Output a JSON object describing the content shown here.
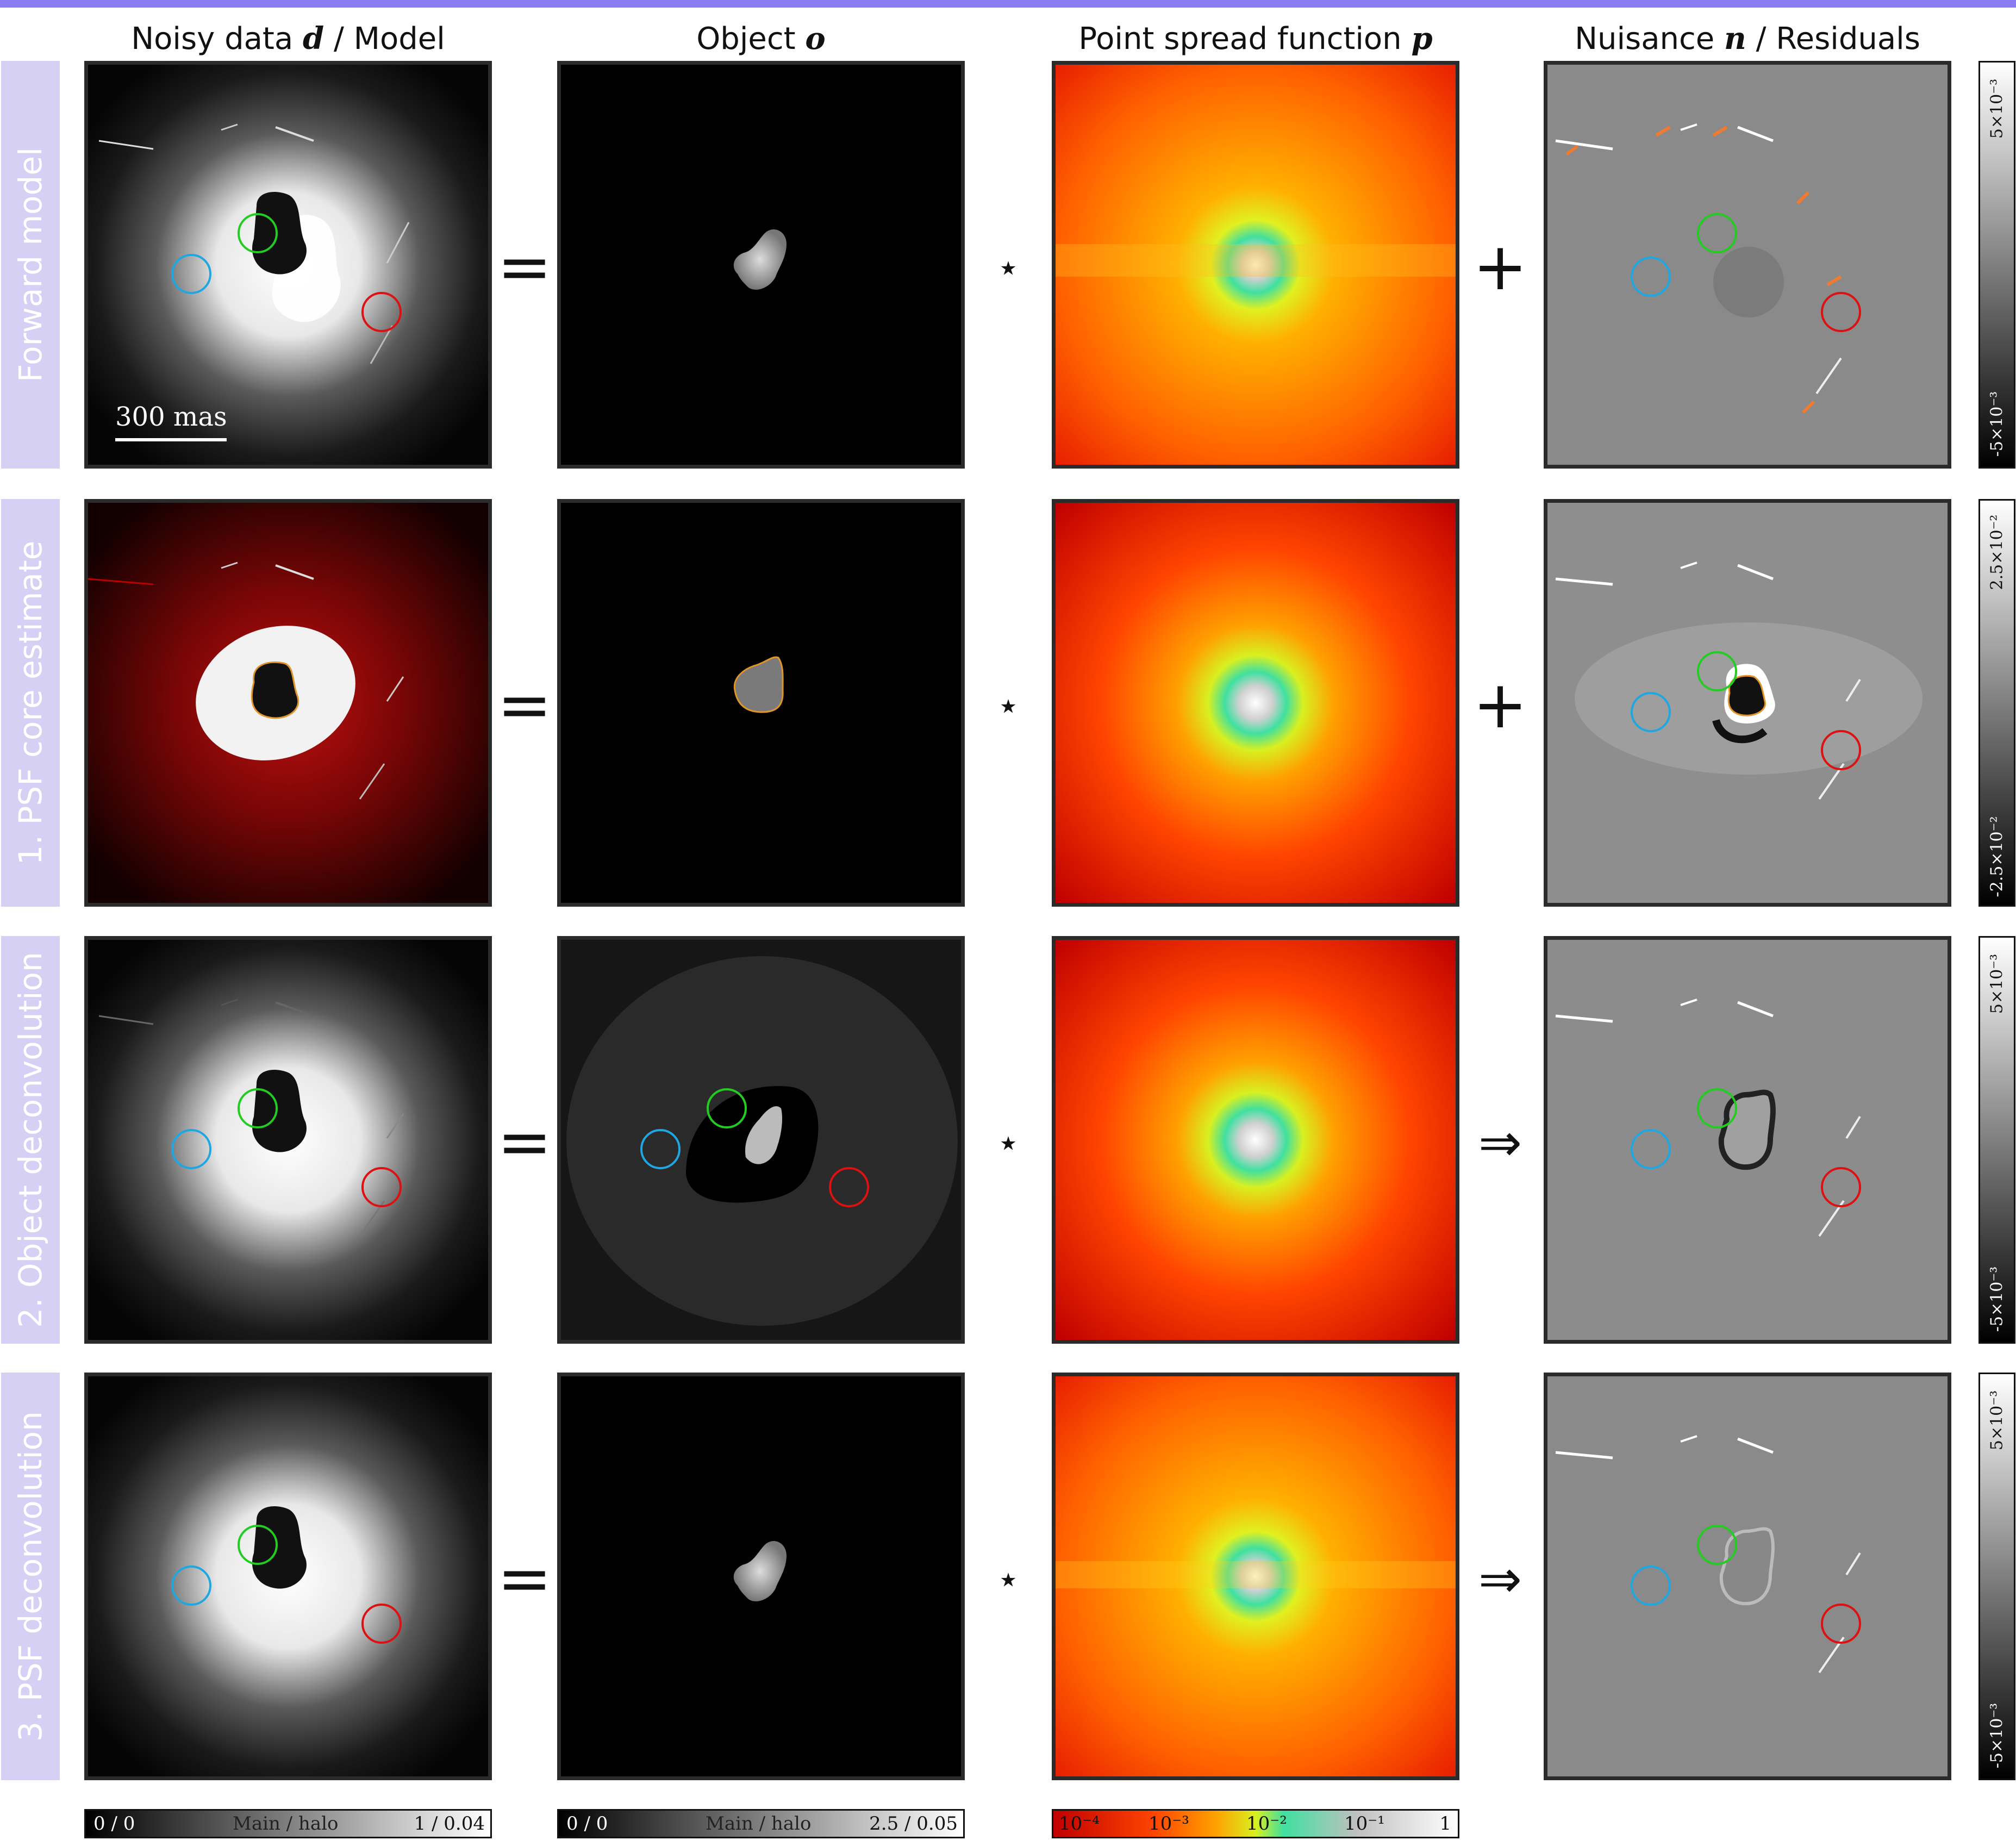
{
  "columns": {
    "data_prefix": "Noisy data ",
    "data_sym": "d",
    "data_suffix": " / Model",
    "object_prefix": "Object ",
    "object_sym": "o",
    "psf_prefix": "Point spread function ",
    "psf_sym": "p",
    "nuis_prefix": "Nuisance ",
    "nuis_sym": "n",
    "nuis_suffix": " / Residuals"
  },
  "rows": [
    {
      "label": "Forward model",
      "op2": "⋆",
      "op3": "+",
      "op1": "=",
      "cb_top": "5×10⁻³",
      "cb_bot": "-5×10⁻³"
    },
    {
      "label": "1. PSF core estimate",
      "op2": "⋆",
      "op3": "+",
      "op1": "=",
      "cb_top": "2.5×10⁻²",
      "cb_bot": "-2.5×10⁻²"
    },
    {
      "label": "2. Object deconvolution",
      "op2": "⋆",
      "op3": "⇒",
      "op1": "=",
      "cb_top": "5×10⁻³",
      "cb_bot": "-5×10⁻³"
    },
    {
      "label": "3. PSF deconvolution",
      "op2": "⋆",
      "op3": "⇒",
      "op1": "=",
      "cb_top": "5×10⁻³",
      "cb_bot": "-5×10⁻³"
    }
  ],
  "scalebar": "300 mas",
  "colorbars": {
    "data": {
      "left": "0 / 0",
      "mid": "Main / halo",
      "right": "1 / 0.04"
    },
    "object": {
      "left": "0 / 0",
      "mid": "Main / halo",
      "right": "2.5 / 0.05"
    },
    "psf": {
      "ticks": [
        "10⁻⁴",
        "10⁻³",
        "10⁻²",
        "10⁻¹",
        "1"
      ]
    }
  },
  "colors": {
    "circle_blue": "#1ea7e0",
    "circle_green": "#22cc22",
    "circle_red": "#dd1111",
    "contour_orange": "#e0952a",
    "arrow_orange": "#f07a30",
    "header_bar": "#8a7cf0",
    "row_label_bg": "#d6d0f4"
  }
}
